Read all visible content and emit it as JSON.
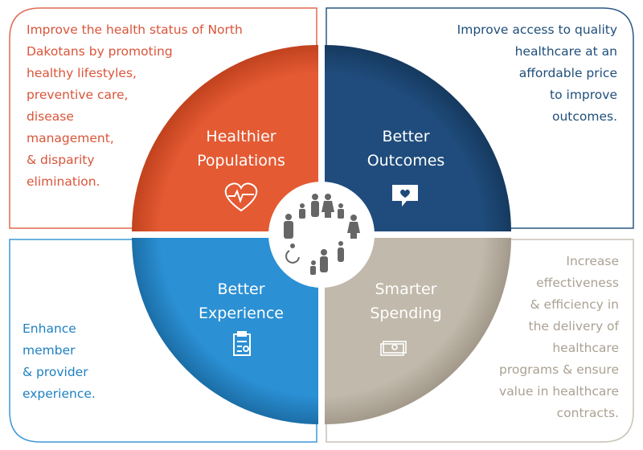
{
  "colors": {
    "healthier": "#e0552f",
    "outcomes": "#1d4a7a",
    "experience": "#2a8ed2",
    "spending": "#beb6a8"
  },
  "center_icon": "people-circle-icon",
  "quadrants": {
    "healthier": {
      "title": [
        "Healthier",
        "Populations"
      ],
      "icon": "heart-pulse-icon",
      "description": [
        "Improve the health status of North",
        "Dakotans by promoting",
        "healthy lifestyles,",
        "preventive care,",
        "disease",
        "management,",
        "& disparity",
        "elimination."
      ]
    },
    "outcomes": {
      "title": [
        "Better",
        "Outcomes"
      ],
      "icon": "heart-chat-icon",
      "description": [
        "Improve access to quality",
        "healthcare at an",
        "affordable price",
        "to improve",
        "outcomes."
      ]
    },
    "experience": {
      "title": [
        "Better",
        "Experience"
      ],
      "icon": "clipboard-icon",
      "description": [
        "Enhance",
        "member",
        "& provider",
        "experience."
      ]
    },
    "spending": {
      "title": [
        "Smarter",
        "Spending"
      ],
      "icon": "money-icon",
      "description": [
        "Increase",
        "effectiveness",
        "& efficiency in",
        "the delivery of",
        "healthcare",
        "programs & ensure",
        "value in healthcare",
        "contracts."
      ]
    }
  }
}
